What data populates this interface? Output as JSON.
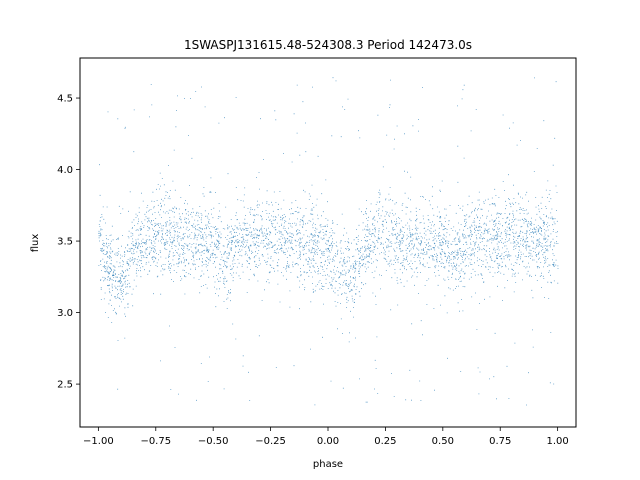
{
  "chart_data": {
    "type": "scatter",
    "title": "1SWASPJ131615.48-524308.3 Period 142473.0s",
    "xlabel": "phase",
    "ylabel": "flux",
    "xlim": [
      -1.08,
      1.08
    ],
    "ylim": [
      2.2,
      4.78
    ],
    "xticks": [
      -1.0,
      -0.75,
      -0.5,
      -0.25,
      0.0,
      0.25,
      0.5,
      0.75,
      1.0
    ],
    "xtick_labels": [
      "−1.00",
      "−0.75",
      "−0.50",
      "−0.25",
      "0.00",
      "0.25",
      "0.50",
      "0.75",
      "1.00"
    ],
    "yticks": [
      2.5,
      3.0,
      3.5,
      4.0,
      4.5
    ],
    "ytick_labels": [
      "2.5",
      "3.0",
      "3.5",
      "4.0",
      "4.5"
    ],
    "grid": false,
    "marker_color": "#1f77b4",
    "series": [
      {
        "description_points": "phase-folded light curve, profile of median flux vs phase",
        "profile_phase": [
          -1.0,
          -0.95,
          -0.9,
          -0.85,
          -0.8,
          -0.75,
          -0.7,
          -0.6,
          -0.5,
          -0.45,
          -0.4,
          -0.3,
          -0.2,
          -0.1,
          -0.05,
          0.0,
          0.05,
          0.1,
          0.15,
          0.2,
          0.25,
          0.3,
          0.4,
          0.5,
          0.55,
          0.6,
          0.7,
          0.8,
          0.9,
          1.0
        ],
        "profile_flux": [
          3.45,
          3.3,
          3.22,
          3.45,
          3.52,
          3.55,
          3.53,
          3.5,
          3.48,
          3.35,
          3.5,
          3.52,
          3.52,
          3.5,
          3.45,
          3.42,
          3.3,
          3.22,
          3.45,
          3.52,
          3.55,
          3.53,
          3.5,
          3.48,
          3.35,
          3.5,
          3.52,
          3.52,
          3.5,
          3.45
        ]
      }
    ]
  }
}
